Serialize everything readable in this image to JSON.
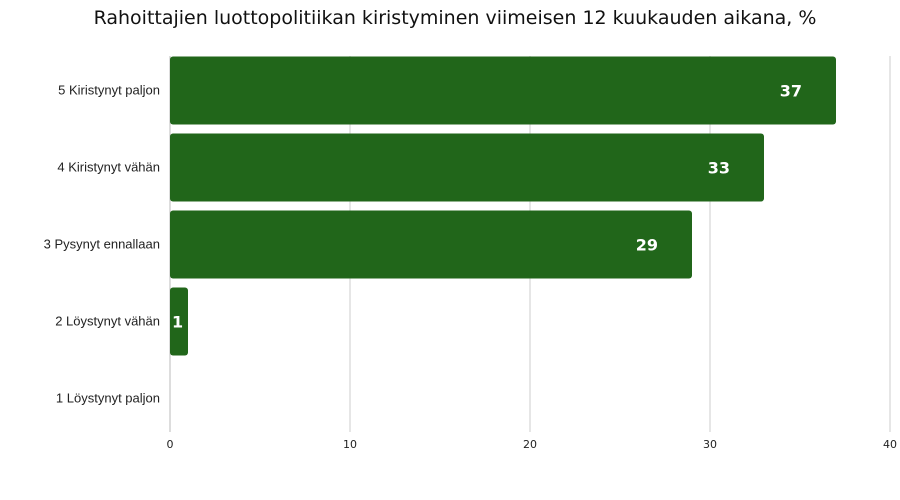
{
  "chart_data": {
    "type": "bar",
    "orientation": "horizontal",
    "title": "Rahoittajien luottopolitiikan kiristyminen viimeisen 12 kuukauden aikana, %",
    "xlabel": "",
    "ylabel": "",
    "categories": [
      "5 Kiristynyt paljon",
      "4 Kiristynyt vähän",
      "3 Pysynyt ennallaan",
      "2 Löystynyt vähän",
      "1 Löystynyt paljon"
    ],
    "values": [
      37,
      33,
      29,
      1,
      0
    ],
    "data_labels": [
      "37",
      "33",
      "29",
      "1",
      ""
    ],
    "xlim": [
      0,
      40
    ],
    "xticks": [
      0,
      10,
      20,
      30,
      40
    ],
    "xtick_labels": [
      "0",
      "10",
      "20",
      "30",
      "40"
    ],
    "grid": "vertical",
    "legend": "none",
    "bar_color": "#21661a"
  }
}
